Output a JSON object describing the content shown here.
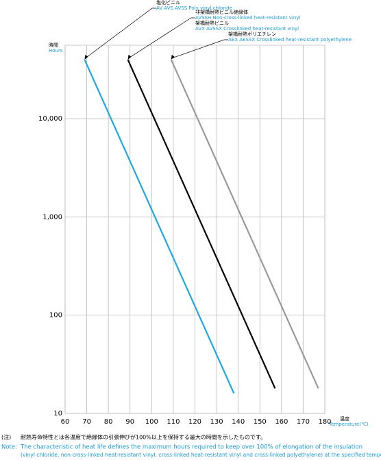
{
  "chart_data": {
    "type": "line",
    "y_title": "時間",
    "y_title_en": "Hours",
    "x_title": "温度",
    "x_title_en": "Temperature(℃)",
    "log_y": true,
    "grid": true,
    "xlim": [
      60,
      180
    ],
    "xticks": [
      60,
      70,
      80,
      90,
      100,
      110,
      120,
      130,
      140,
      150,
      160,
      170,
      180
    ],
    "ylim": [
      10,
      56000
    ],
    "yticks": [
      10,
      100,
      {
        "value": 1000,
        "label": "1,000"
      },
      {
        "value": 10000,
        "label": "10,000"
      }
    ],
    "series": [
      {
        "color": "#1ea7e1",
        "x": [
          69,
          138
        ],
        "values": [
          40000,
          16
        ],
        "label_lines": [
          "塩化ビニル",
          "AV  AVS  AVSS   Poly vinyl chloride"
        ]
      },
      {
        "color": "#000000",
        "x": [
          89,
          157
        ],
        "values": [
          40000,
          18
        ],
        "label_lines": [
          "非架橋耐熱ビニル絶縁体",
          "AVSSH   Non-cross-linked heat-resistant vinyl",
          "架橋耐熱ビニル",
          "AVX  AVSSX   Crosslinked heat-resistant vinyl"
        ]
      },
      {
        "color": "#999999",
        "x": [
          109,
          177
        ],
        "values": [
          40000,
          18
        ],
        "label_lines": [
          "架橋耐熱ポリエチレン",
          "AEX  AESSX   Crosslinked heat-resistant polyethylene"
        ]
      }
    ],
    "note_ja_head": "(注)",
    "note_ja": "耐熱寿命特性とは各温度で絶縁体の引張伸びが100%以上を保持する最大の時間を示したものです。",
    "note_en_head": "Note:",
    "note_en_1": "The characteristic of heat life defines the maximum hours required to keep over 100% of elongation of the insulation",
    "note_en_2": "(vinyl chloride, non-cross-linked heat-resistant vinyl, cross-linked heat-resistant vinyl and cross-linked polyethylene) at the specified temperature."
  }
}
